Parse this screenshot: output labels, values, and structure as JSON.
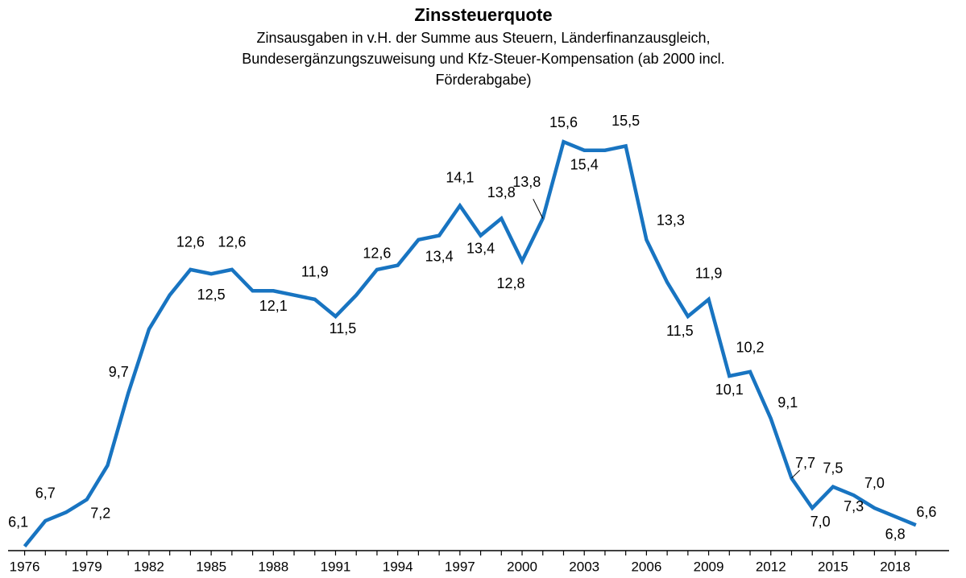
{
  "chart_data": {
    "type": "line",
    "title": "Zinssteuerquote",
    "subtitle": [
      "Zinsausgaben in v.H. der Summe aus Steuern, Länderfinanzausgleich,",
      "Bundesergänzungszuweisung und Kfz-Steuer-Kompensation (ab 2000 incl.",
      "Förderabgabe)"
    ],
    "x": [
      1976,
      1977,
      1978,
      1979,
      1980,
      1981,
      1982,
      1983,
      1984,
      1985,
      1986,
      1987,
      1988,
      1989,
      1990,
      1991,
      1992,
      1993,
      1994,
      1995,
      1996,
      1997,
      1998,
      1999,
      2000,
      2001,
      2002,
      2003,
      2004,
      2005,
      2006,
      2007,
      2008,
      2009,
      2010,
      2011,
      2012,
      2013,
      2014,
      2015,
      2016,
      2017,
      2018,
      2019
    ],
    "series": [
      {
        "name": "Zinssteuerquote",
        "color": "#1874c1",
        "values": [
          6.1,
          6.7,
          6.9,
          7.2,
          8.0,
          9.7,
          11.2,
          12.0,
          12.6,
          12.5,
          12.6,
          12.1,
          12.1,
          12.0,
          11.9,
          11.5,
          12.0,
          12.6,
          12.7,
          13.3,
          13.4,
          14.1,
          13.4,
          13.8,
          12.8,
          13.8,
          15.6,
          15.4,
          15.4,
          15.5,
          13.3,
          12.3,
          11.5,
          11.9,
          10.1,
          10.2,
          9.1,
          7.7,
          7.0,
          7.5,
          7.3,
          7.0,
          6.8,
          6.6
        ],
        "value_labels": [
          "6,1",
          "6,7",
          null,
          "7,2",
          null,
          "9,7",
          null,
          null,
          "12,6",
          "12,5",
          "12,6",
          null,
          "12,1",
          null,
          "11,9",
          "11,5",
          null,
          "12,6",
          null,
          null,
          "13,4",
          "14,1",
          "13,4",
          "13,8",
          "12,8",
          "13,8",
          "15,6",
          "15,4",
          null,
          "15,5",
          "13,3",
          null,
          "11,5",
          "11,9",
          "10,1",
          "10,2",
          "9,1",
          "7,7",
          "7,0",
          "7,5",
          "7,3",
          "7,0",
          "6,8",
          "6,6"
        ]
      }
    ],
    "xlim": [
      1975.2,
      2020.6
    ],
    "xticks": [
      1976,
      1979,
      1982,
      1985,
      1988,
      1991,
      1994,
      1997,
      2000,
      2003,
      2006,
      2009,
      2012,
      2015,
      2018
    ],
    "ylim": [
      6.0,
      16.0
    ]
  }
}
